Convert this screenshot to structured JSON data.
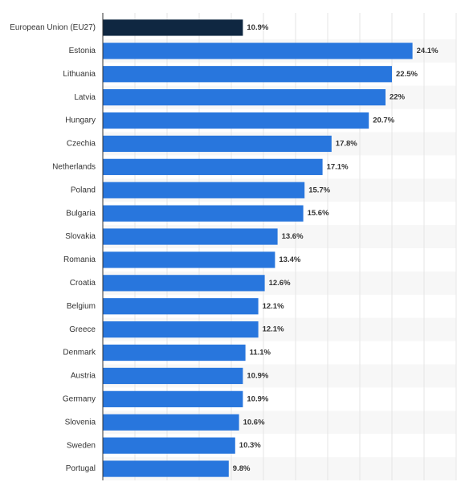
{
  "chart_data": {
    "type": "bar",
    "orientation": "horizontal",
    "categories": [
      "European Union (EU27)",
      "Estonia",
      "Lithuania",
      "Latvia",
      "Hungary",
      "Czechia",
      "Netherlands",
      "Poland",
      "Bulgaria",
      "Slovakia",
      "Romania",
      "Croatia",
      "Belgium",
      "Greece",
      "Denmark",
      "Austria",
      "Germany",
      "Slovenia",
      "Sweden",
      "Portugal"
    ],
    "values": [
      10.9,
      24.1,
      22.5,
      22,
      20.7,
      17.8,
      17.1,
      15.7,
      15.6,
      13.6,
      13.4,
      12.6,
      12.1,
      12.1,
      11.1,
      10.9,
      10.9,
      10.6,
      10.3,
      9.8
    ],
    "value_labels": [
      "10.9%",
      "24.1%",
      "22.5%",
      "22%",
      "20.7%",
      "17.8%",
      "17.1%",
      "15.7%",
      "15.6%",
      "13.6%",
      "13.4%",
      "12.6%",
      "12.1%",
      "12.1%",
      "11.1%",
      "10.9%",
      "10.9%",
      "10.6%",
      "10.3%",
      "9.8%"
    ],
    "colors": [
      "#0f2741",
      "#2876dd",
      "#2876dd",
      "#2876dd",
      "#2876dd",
      "#2876dd",
      "#2876dd",
      "#2876dd",
      "#2876dd",
      "#2876dd",
      "#2876dd",
      "#2876dd",
      "#2876dd",
      "#2876dd",
      "#2876dd",
      "#2876dd",
      "#2876dd",
      "#2876dd",
      "#2876dd",
      "#2876dd"
    ],
    "xlim": [
      0,
      27.5
    ],
    "xticks": [
      0,
      2.5,
      5,
      7.5,
      10,
      12.5,
      15,
      17.5,
      20,
      22.5,
      25,
      27.5
    ],
    "grid": true
  }
}
